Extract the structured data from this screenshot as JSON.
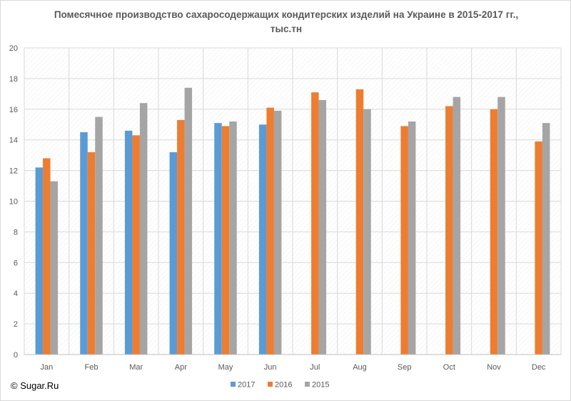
{
  "title_line1": "Помесячное производство сахаросодержащих кондитерских изделий на Украине в 2015-2017 гг.,",
  "title_line2": "тыс.тн",
  "credit": "© Sugar.Ru",
  "chart_data": {
    "type": "bar",
    "categories": [
      "Jan",
      "Feb",
      "Mar",
      "Apr",
      "May",
      "Jun",
      "Jul",
      "Aug",
      "Sep",
      "Oct",
      "Nov",
      "Dec"
    ],
    "series": [
      {
        "name": "2017",
        "color": "#5b9bd5",
        "values": [
          12.2,
          14.5,
          14.6,
          13.2,
          15.1,
          15.0,
          null,
          null,
          null,
          null,
          null,
          null
        ]
      },
      {
        "name": "2016",
        "color": "#ed7d31",
        "values": [
          12.8,
          13.2,
          14.3,
          15.3,
          14.9,
          16.1,
          17.1,
          17.3,
          14.9,
          16.2,
          16.0,
          13.9
        ]
      },
      {
        "name": "2015",
        "color": "#a5a5a5",
        "values": [
          11.3,
          15.5,
          16.4,
          17.4,
          15.2,
          15.9,
          16.6,
          16.0,
          15.2,
          16.8,
          16.8,
          15.1
        ]
      }
    ],
    "ylim": [
      0,
      20
    ],
    "yticks": [
      "0",
      "2",
      "4",
      "6",
      "8",
      "10",
      "12",
      "14",
      "16",
      "18",
      "20"
    ],
    "grid": true,
    "legend": "bottom"
  }
}
